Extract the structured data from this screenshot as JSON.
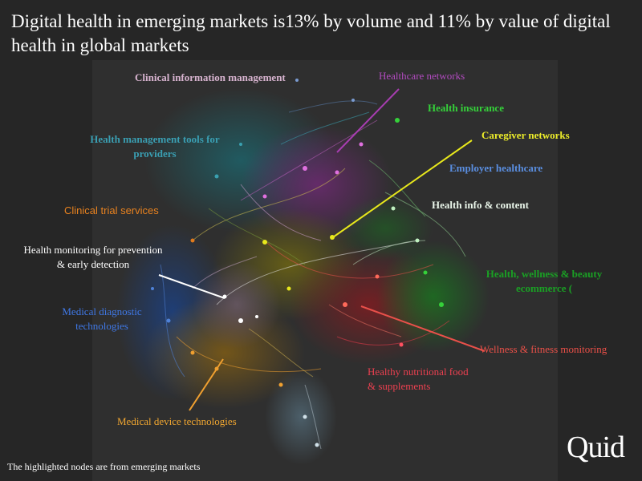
{
  "title": "Digital health in emerging markets is13% by volume and 11% by value of digital health in global markets",
  "footnote": "The highlighted nodes are from emerging markets",
  "logo": "Quid",
  "colors": {
    "background": "#262626",
    "panel": "#2f2f2f"
  },
  "clusters": [
    {
      "id": "clinical-info",
      "label": "Clinical information management",
      "color": "#c9a0c0"
    },
    {
      "id": "healthcare-networks",
      "label": "Healthcare networks",
      "color": "#a73db0"
    },
    {
      "id": "health-insurance",
      "label": "Health insurance",
      "color": "#35d13a"
    },
    {
      "id": "caregiver-networks",
      "label": "Caregiver networks",
      "color": "#e8e81c"
    },
    {
      "id": "health-mgmt-tools",
      "label": "Health management tools for providers",
      "color": "#2f8fa3"
    },
    {
      "id": "employer-healthcare",
      "label": "Employer healthcare",
      "color": "#4f82d8"
    },
    {
      "id": "clinical-trial",
      "label": "Clinical trial services",
      "color": "#e07a1c"
    },
    {
      "id": "health-info",
      "label": "Health info & content",
      "color": "#e6f4e6"
    },
    {
      "id": "health-monitoring",
      "label": "Health monitoring for prevention & early detection",
      "color": "#ffffff"
    },
    {
      "id": "wellness-ecommerce",
      "label": "Health, wellness & beauty ecommerce (",
      "color": "#1a9a22"
    },
    {
      "id": "medical-diagnostic",
      "label": "Medical diagnostic technologies",
      "color": "#3a6fe0"
    },
    {
      "id": "wellness-fitness",
      "label": "Wellness & fitness monitoring",
      "color": "#e8504a"
    },
    {
      "id": "healthy-nutritional",
      "label": "Healthy nutritional food & supplements",
      "color": "#e83a4a"
    },
    {
      "id": "medical-device",
      "label": "Medical device technologies",
      "color": "#f0a030"
    }
  ]
}
